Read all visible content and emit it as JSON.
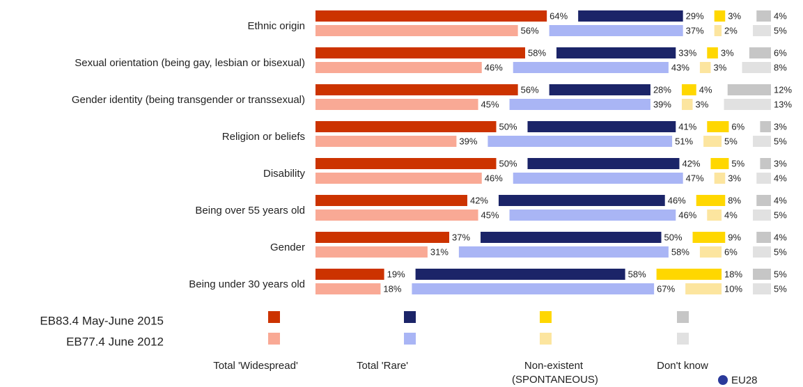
{
  "chart_data": {
    "type": "bar",
    "categories": [
      "Ethnic origin",
      "Sexual orientation (being gay, lesbian or bisexual)",
      "Gender identity (being transgender or transsexual)",
      "Religion or beliefs",
      "Disability",
      "Being over 55 years old",
      "Gender",
      "Being under 30 years old"
    ],
    "waves": [
      "EB83.4 May-June 2015",
      "EB77.4 June 2012"
    ],
    "series": [
      {
        "name": "Total 'Widespread'",
        "colors": [
          "#cc3300",
          "#f9a995"
        ],
        "values": [
          [
            64,
            58,
            56,
            50,
            50,
            42,
            37,
            19
          ],
          [
            56,
            46,
            45,
            39,
            46,
            45,
            31,
            18
          ]
        ],
        "value_labels": [
          [
            "64%",
            "58%",
            "56%",
            "50%",
            "50%",
            "42%",
            "37%",
            "19%"
          ],
          [
            "56%",
            "46%",
            "45%",
            "39%",
            "46%",
            "45%",
            "31%",
            "18%"
          ]
        ]
      },
      {
        "name": "Total 'Rare'",
        "colors": [
          "#1b2468",
          "#a9b5f5"
        ],
        "values": [
          [
            29,
            33,
            28,
            41,
            42,
            46,
            50,
            58
          ],
          [
            37,
            43,
            39,
            51,
            47,
            46,
            58,
            67
          ]
        ],
        "value_labels": [
          [
            "29%",
            "33%",
            "28%",
            "41%",
            "42%",
            "46%",
            "50%",
            "58%"
          ],
          [
            "37%",
            "43%",
            "39%",
            "51%",
            "47%",
            "46%",
            "58%",
            "67%"
          ]
        ]
      },
      {
        "name": "Non-existent (SPONTANEOUS)",
        "colors": [
          "#ffd700",
          "#fce59f"
        ],
        "values": [
          [
            3,
            3,
            4,
            6,
            5,
            8,
            9,
            18
          ],
          [
            2,
            3,
            3,
            5,
            3,
            4,
            6,
            10
          ]
        ],
        "value_labels": [
          [
            "3%",
            "3%",
            "4%",
            "6%",
            "5%",
            "8%",
            "9%",
            "18%"
          ],
          [
            "2%",
            "3%",
            "3%",
            "5%",
            "3%",
            "4%",
            "6%",
            "10%"
          ]
        ]
      },
      {
        "name": "Don't know",
        "colors": [
          "#c6c6c6",
          "#e1e1e1"
        ],
        "values": [
          [
            4,
            6,
            12,
            3,
            3,
            4,
            4,
            5
          ],
          [
            5,
            8,
            13,
            5,
            4,
            5,
            5,
            5
          ]
        ],
        "value_labels": [
          [
            "4%",
            "6%",
            "12%",
            "3%",
            "3%",
            "4%",
            "4%",
            "5%"
          ],
          [
            "5%",
            "8%",
            "13%",
            "5%",
            "4%",
            "5%",
            "5%",
            "5%"
          ]
        ]
      }
    ],
    "footer": "EU28"
  }
}
